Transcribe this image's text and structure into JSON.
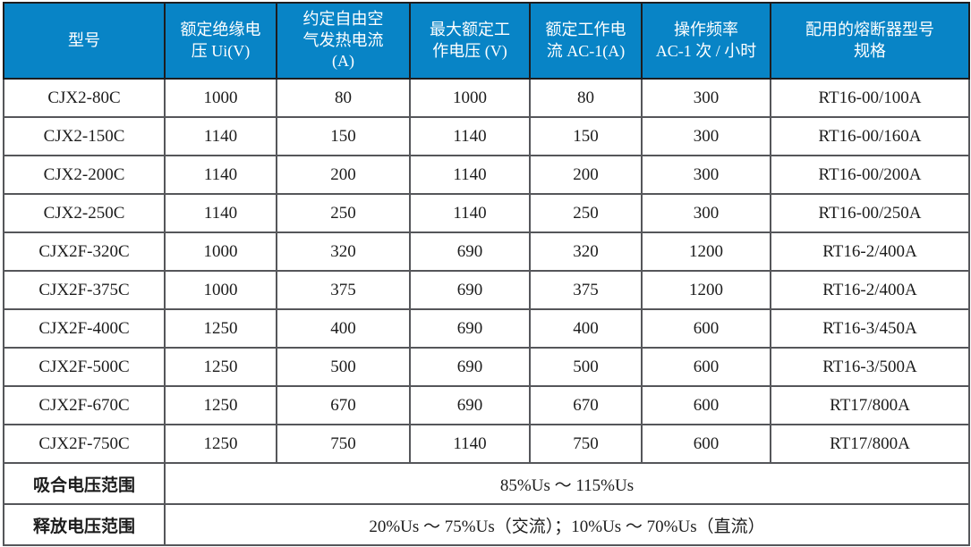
{
  "table": {
    "columns": [
      "型号",
      "额定绝缘电\n压 Ui(V)",
      "约定自由空\n气发热电流\n(A)",
      "最大额定工\n作电压 (V)",
      "额定工作电\n流 AC-1(A)",
      "操作频率\nAC-1 次 / 小时",
      "配用的熔断器型号\n规格"
    ],
    "rows": [
      [
        "CJX2-80C",
        "1000",
        "80",
        "1000",
        "80",
        "300",
        "RT16-00/100A"
      ],
      [
        "CJX2-150C",
        "1140",
        "150",
        "1140",
        "150",
        "300",
        "RT16-00/160A"
      ],
      [
        "CJX2-200C",
        "1140",
        "200",
        "1140",
        "200",
        "300",
        "RT16-00/200A"
      ],
      [
        "CJX2-250C",
        "1140",
        "250",
        "1140",
        "250",
        "300",
        "RT16-00/250A"
      ],
      [
        "CJX2F-320C",
        "1000",
        "320",
        "690",
        "320",
        "1200",
        "RT16-2/400A"
      ],
      [
        "CJX2F-375C",
        "1000",
        "375",
        "690",
        "375",
        "1200",
        "RT16-2/400A"
      ],
      [
        "CJX2F-400C",
        "1250",
        "400",
        "690",
        "400",
        "600",
        "RT16-3/450A"
      ],
      [
        "CJX2F-500C",
        "1250",
        "500",
        "690",
        "500",
        "600",
        "RT16-3/500A"
      ],
      [
        "CJX2F-670C",
        "1250",
        "670",
        "690",
        "670",
        "600",
        "RT17/800A"
      ],
      [
        "CJX2F-750C",
        "1250",
        "750",
        "1140",
        "750",
        "600",
        "RT17/800A"
      ]
    ],
    "footer_rows": [
      {
        "label": "吸合电压范围",
        "value": "85%Us ～ 115%Us"
      },
      {
        "label": "释放电压范围",
        "value": "20%Us ～ 75%Us（交流）；10%Us ～ 70%Us（直流）"
      }
    ]
  },
  "colors": {
    "header_bg": "#0884c6",
    "header_text": "#ffffff",
    "border": "#55565a",
    "body_text": "#1c1c1c"
  }
}
